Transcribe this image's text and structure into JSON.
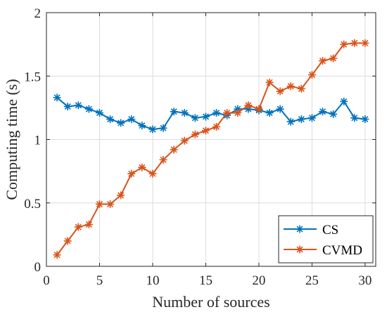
{
  "chart_data": {
    "type": "line",
    "xlabel": "Number of sources",
    "ylabel": "Computing time (s)",
    "xlim": [
      0,
      31
    ],
    "ylim": [
      0,
      2
    ],
    "xticks": [
      0,
      5,
      10,
      15,
      20,
      25,
      30
    ],
    "yticks": [
      0,
      0.5,
      1,
      1.5,
      2
    ],
    "ytick_labels": [
      "0",
      "0.5",
      "1",
      "1.5",
      "2"
    ],
    "grid": true,
    "legend_position": "bottom-right",
    "marker": "asterisk",
    "x": [
      1,
      2,
      3,
      4,
      5,
      6,
      7,
      8,
      9,
      10,
      11,
      12,
      13,
      14,
      15,
      16,
      17,
      18,
      19,
      20,
      21,
      22,
      23,
      24,
      25,
      26,
      27,
      28,
      29,
      30
    ],
    "series": [
      {
        "name": "CS",
        "color": "#0072bd",
        "values": [
          1.33,
          1.26,
          1.27,
          1.24,
          1.21,
          1.16,
          1.13,
          1.16,
          1.11,
          1.08,
          1.09,
          1.22,
          1.21,
          1.17,
          1.18,
          1.21,
          1.19,
          1.24,
          1.24,
          1.23,
          1.21,
          1.24,
          1.14,
          1.16,
          1.17,
          1.22,
          1.2,
          1.3,
          1.17,
          1.16
        ]
      },
      {
        "name": "CVMD",
        "color": "#d95319",
        "values": [
          0.09,
          0.2,
          0.31,
          0.33,
          0.49,
          0.49,
          0.56,
          0.73,
          0.78,
          0.73,
          0.84,
          0.92,
          0.99,
          1.04,
          1.07,
          1.1,
          1.21,
          1.21,
          1.27,
          1.24,
          1.45,
          1.38,
          1.42,
          1.4,
          1.51,
          1.62,
          1.64,
          1.75,
          1.76,
          1.76
        ]
      }
    ]
  }
}
